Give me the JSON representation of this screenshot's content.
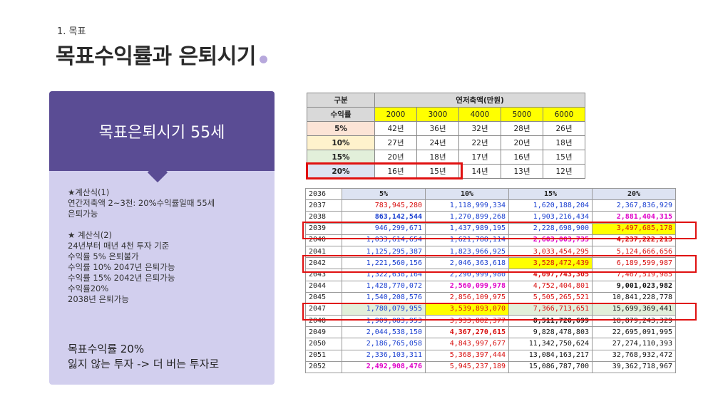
{
  "section_num": "1. 목표",
  "title": "목표수익률과 은퇴시기",
  "card": {
    "header": "목표은퇴시기 55세",
    "body_lines": [
      "★계산식(1)",
      "연간저축액 2~3천: 20%수익률일때 55세",
      "은퇴가능",
      "",
      "★ 계산식(2)",
      "24년부터 매년 4천 투자 기준",
      "수익률 5% 은퇴불가",
      "수익률 10% 2047년 은퇴가능",
      "수익률 15% 2042년 은퇴가능",
      "수익률20%",
      "2038년 은퇴가능"
    ],
    "conclusion_1": "목표수익률 20%",
    "conclusion_2": "잃지 않는 투자 -> 더 버는 투자로"
  },
  "table1": {
    "h_gubun": "구분",
    "h_annual": "연저축액(만원)",
    "h_rate": "수익률",
    "amounts": [
      "2000",
      "3000",
      "4000",
      "5000",
      "6000"
    ],
    "rows": [
      {
        "label": "5%",
        "vals": [
          "42년",
          "36년",
          "32년",
          "28년",
          "26년"
        ]
      },
      {
        "label": "10%",
        "vals": [
          "27년",
          "24년",
          "22년",
          "20년",
          "18년"
        ]
      },
      {
        "label": "15%",
        "vals": [
          "20년",
          "18년",
          "17년",
          "16년",
          "15년"
        ]
      },
      {
        "label": "20%",
        "vals": [
          "16년",
          "15년",
          "14년",
          "13년",
          "12년"
        ]
      }
    ]
  },
  "table2": {
    "first_year": "2036",
    "headers": [
      "5%",
      "10%",
      "15%",
      "20%"
    ],
    "rows": [
      {
        "year": "2037",
        "vals": [
          "783,945,280",
          "1,118,999,334",
          "1,620,188,204",
          "2,367,836,929"
        ]
      },
      {
        "year": "2038",
        "vals": [
          "863,142,544",
          "1,270,899,268",
          "1,903,216,434",
          "2,881,404,315"
        ]
      },
      {
        "year": "2039",
        "vals": [
          "946,299,671",
          "1,437,989,195",
          "2,228,698,900",
          "3,497,685,178"
        ]
      },
      {
        "year": "2040",
        "vals": [
          "1,033,614,654",
          "1,621,788,114",
          "2,603,003,735",
          "4,237,222,213"
        ]
      },
      {
        "year": "2041",
        "vals": [
          "1,125,295,387",
          "1,823,966,925",
          "3,033,454,295",
          "5,124,666,656"
        ]
      },
      {
        "year": "2042",
        "vals": [
          "1,221,560,156",
          "2,046,363,618",
          "3,528,472,439",
          "6,189,599,987"
        ]
      },
      {
        "year": "2043",
        "vals": [
          "1,322,638,164",
          "2,290,999,980",
          "4,097,743,305",
          "7,467,519,985"
        ]
      },
      {
        "year": "2044",
        "vals": [
          "1,428,770,072",
          "2,560,099,978",
          "4,752,404,801",
          "9,001,023,982"
        ]
      },
      {
        "year": "2045",
        "vals": [
          "1,540,208,576",
          "2,856,109,975",
          "5,505,265,521",
          "10,841,228,778"
        ]
      },
      {
        "year": "2047",
        "vals": [
          "1,780,079,955",
          "3,539,893,070",
          "7,366,713,651",
          "15,699,369,441"
        ]
      },
      {
        "year": "2048",
        "vals": [
          "1,909,083,953",
          "3,933,882,377",
          "8,511,720,699",
          "18,879,243,329"
        ]
      },
      {
        "year": "2049",
        "vals": [
          "2,044,538,150",
          "4,367,270,615",
          "9,828,478,803",
          "22,695,091,995"
        ]
      },
      {
        "year": "2050",
        "vals": [
          "2,186,765,058",
          "4,843,997,677",
          "11,342,750,624",
          "27,274,110,393"
        ]
      },
      {
        "year": "2051",
        "vals": [
          "2,336,103,311",
          "5,368,397,444",
          "13,084,163,217",
          "32,768,932,472"
        ]
      },
      {
        "year": "2052",
        "vals": [
          "2,492,908,476",
          "5,945,237,189",
          "15,086,787,700",
          "39,362,718,967"
        ]
      }
    ]
  },
  "colors": {
    "card_header": "#5a4c94",
    "card_body": "#d2cfee",
    "highlight_yellow": "#ffff00",
    "outline_red": "#e01010",
    "text_blue": "#1a3fd0",
    "text_red": "#d80f0f",
    "text_magenta": "#e000c8"
  }
}
